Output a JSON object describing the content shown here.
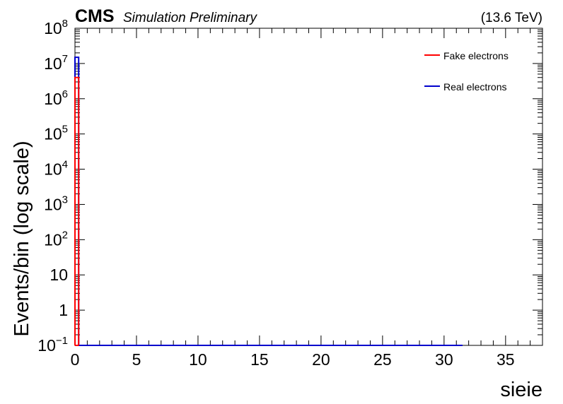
{
  "header": {
    "cms_label": "CMS",
    "cms_extra": "Simulation Preliminary",
    "energy_label": "(13.6 TeV)"
  },
  "chart_data": {
    "type": "histogram",
    "xlabel": "sieie",
    "ylabel": "Events/bin (log scale)",
    "xlim": [
      0,
      38
    ],
    "ylim": [
      0.1,
      100000000
    ],
    "yscale": "log",
    "x_ticks": [
      0,
      5,
      10,
      15,
      20,
      25,
      30,
      35
    ],
    "y_ticks": [
      {
        "base": "10",
        "exp": "−1",
        "value": 0.1
      },
      {
        "base": "1",
        "exp": "",
        "value": 1
      },
      {
        "base": "10",
        "exp": "",
        "value": 10
      },
      {
        "base": "10",
        "exp": "2",
        "value": 100
      },
      {
        "base": "10",
        "exp": "3",
        "value": 1000
      },
      {
        "base": "10",
        "exp": "4",
        "value": 10000
      },
      {
        "base": "10",
        "exp": "5",
        "value": 100000
      },
      {
        "base": "10",
        "exp": "6",
        "value": 1000000
      },
      {
        "base": "10",
        "exp": "7",
        "value": 10000000
      },
      {
        "base": "10",
        "exp": "8",
        "value": 100000000
      }
    ],
    "grid": false,
    "legend_position": "top-right",
    "series": [
      {
        "name": "Fake electrons",
        "color": "#ff0000",
        "bins": [
          [
            0,
            0.3,
            4000000
          ]
        ]
      },
      {
        "name": "Real electrons",
        "color": "#0000cc",
        "bins": [
          [
            0,
            0.3,
            15000000
          ]
        ],
        "x_end": 31.5
      }
    ]
  }
}
